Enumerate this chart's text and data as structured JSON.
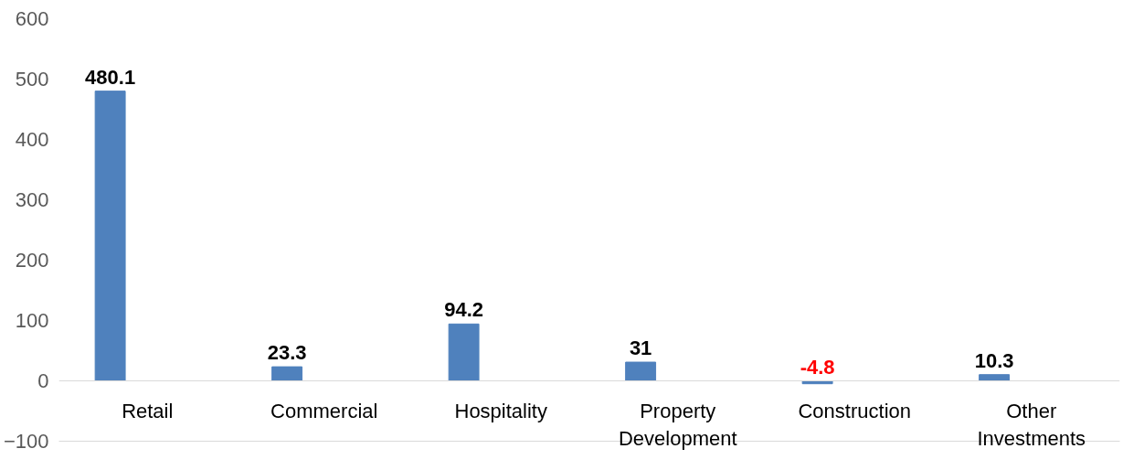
{
  "chart_data": {
    "type": "bar",
    "categories": [
      "Retail",
      "Commercial",
      "Hospitality",
      "Property Development",
      "Construction",
      "Other Investments"
    ],
    "values": [
      480.1,
      23.3,
      94.2,
      31,
      -4.8,
      10.3
    ],
    "color": "#4f81bd",
    "data_labels": true,
    "ylim": [
      -100,
      600
    ],
    "yticks": [
      -100,
      0,
      100,
      200,
      300,
      400,
      500,
      600
    ]
  }
}
